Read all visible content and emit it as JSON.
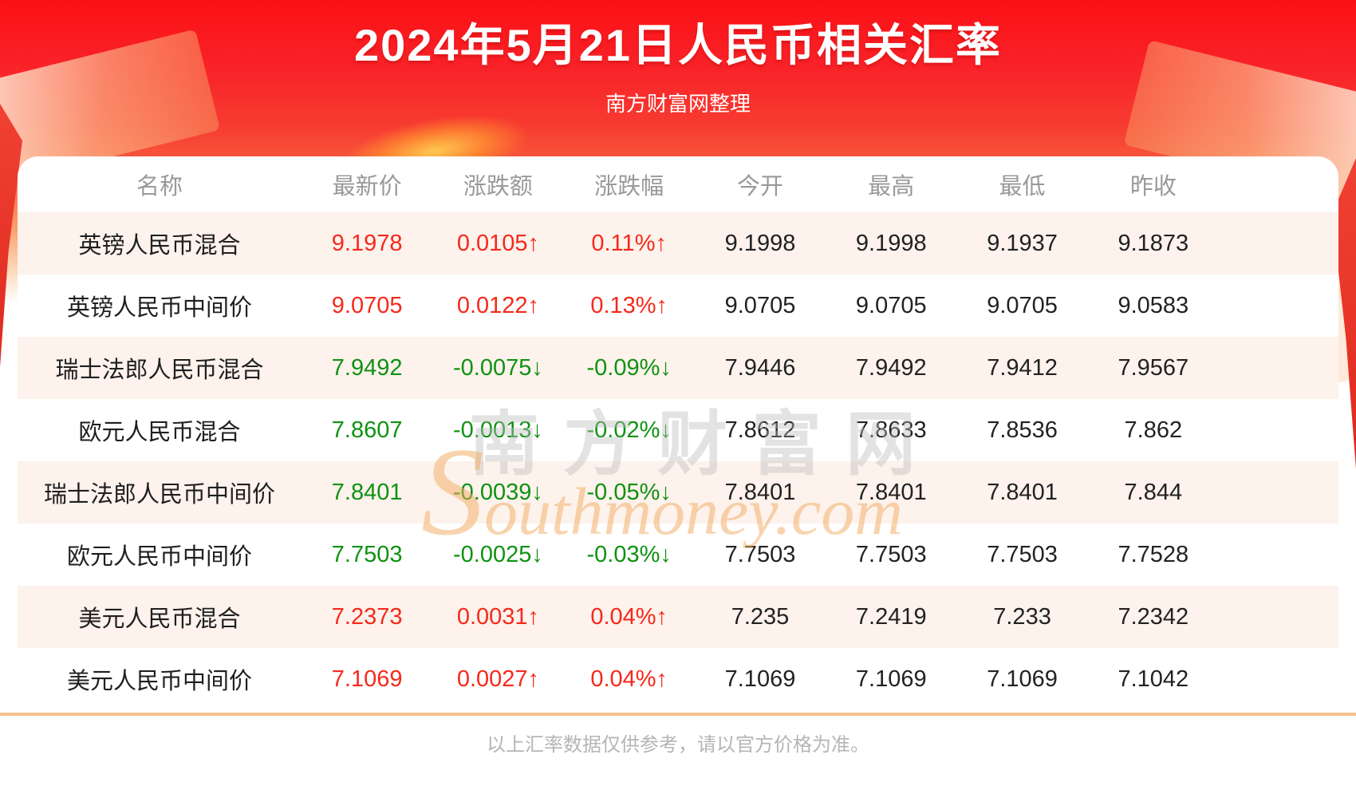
{
  "chart_data": {
    "type": "table",
    "title": "2024年5月21日人民币相关汇率",
    "subtitle": "南方财富网整理",
    "columns": [
      "名称",
      "最新价",
      "涨跌额",
      "涨跌幅",
      "今开",
      "最高",
      "最低",
      "昨收"
    ],
    "rows": [
      {
        "name": "英镑人民币混合",
        "latest": "9.1978",
        "change": "0.0105↑",
        "pct": "0.11%↑",
        "open": "9.1998",
        "high": "9.1998",
        "low": "9.1937",
        "prev": "9.1873",
        "dir": "up"
      },
      {
        "name": "英镑人民币中间价",
        "latest": "9.0705",
        "change": "0.0122↑",
        "pct": "0.13%↑",
        "open": "9.0705",
        "high": "9.0705",
        "low": "9.0705",
        "prev": "9.0583",
        "dir": "up"
      },
      {
        "name": "瑞士法郎人民币混合",
        "latest": "7.9492",
        "change": "-0.0075↓",
        "pct": "-0.09%↓",
        "open": "7.9446",
        "high": "7.9492",
        "low": "7.9412",
        "prev": "7.9567",
        "dir": "down"
      },
      {
        "name": "欧元人民币混合",
        "latest": "7.8607",
        "change": "-0.0013↓",
        "pct": "-0.02%↓",
        "open": "7.8612",
        "high": "7.8633",
        "low": "7.8536",
        "prev": "7.862",
        "dir": "down"
      },
      {
        "name": "瑞士法郎人民币中间价",
        "latest": "7.8401",
        "change": "-0.0039↓",
        "pct": "-0.05%↓",
        "open": "7.8401",
        "high": "7.8401",
        "low": "7.8401",
        "prev": "7.844",
        "dir": "down"
      },
      {
        "name": "欧元人民币中间价",
        "latest": "7.7503",
        "change": "-0.0025↓",
        "pct": "-0.03%↓",
        "open": "7.7503",
        "high": "7.7503",
        "low": "7.7503",
        "prev": "7.7528",
        "dir": "down"
      },
      {
        "name": "美元人民币混合",
        "latest": "7.2373",
        "change": "0.0031↑",
        "pct": "0.04%↑",
        "open": "7.235",
        "high": "7.2419",
        "low": "7.233",
        "prev": "7.2342",
        "dir": "up"
      },
      {
        "name": "美元人民币中间价",
        "latest": "7.1069",
        "change": "0.0027↑",
        "pct": "0.04%↑",
        "open": "7.1069",
        "high": "7.1069",
        "low": "7.1069",
        "prev": "7.1042",
        "dir": "up"
      }
    ]
  },
  "watermark": {
    "cn": "南方财富网",
    "en": "Southmoney.com"
  },
  "footer": {
    "disclaimer": "以上汇率数据仅供参考，请以官方价格为准。"
  },
  "colors": {
    "up": "#f5291b",
    "down": "#0f9212",
    "header_text": "#999999",
    "value_text": "#222222",
    "pink_row": "#fdf2ec",
    "divider": "#f6c18d",
    "footer_text": "#b5b5b5",
    "header_red": "#f91d1f"
  }
}
